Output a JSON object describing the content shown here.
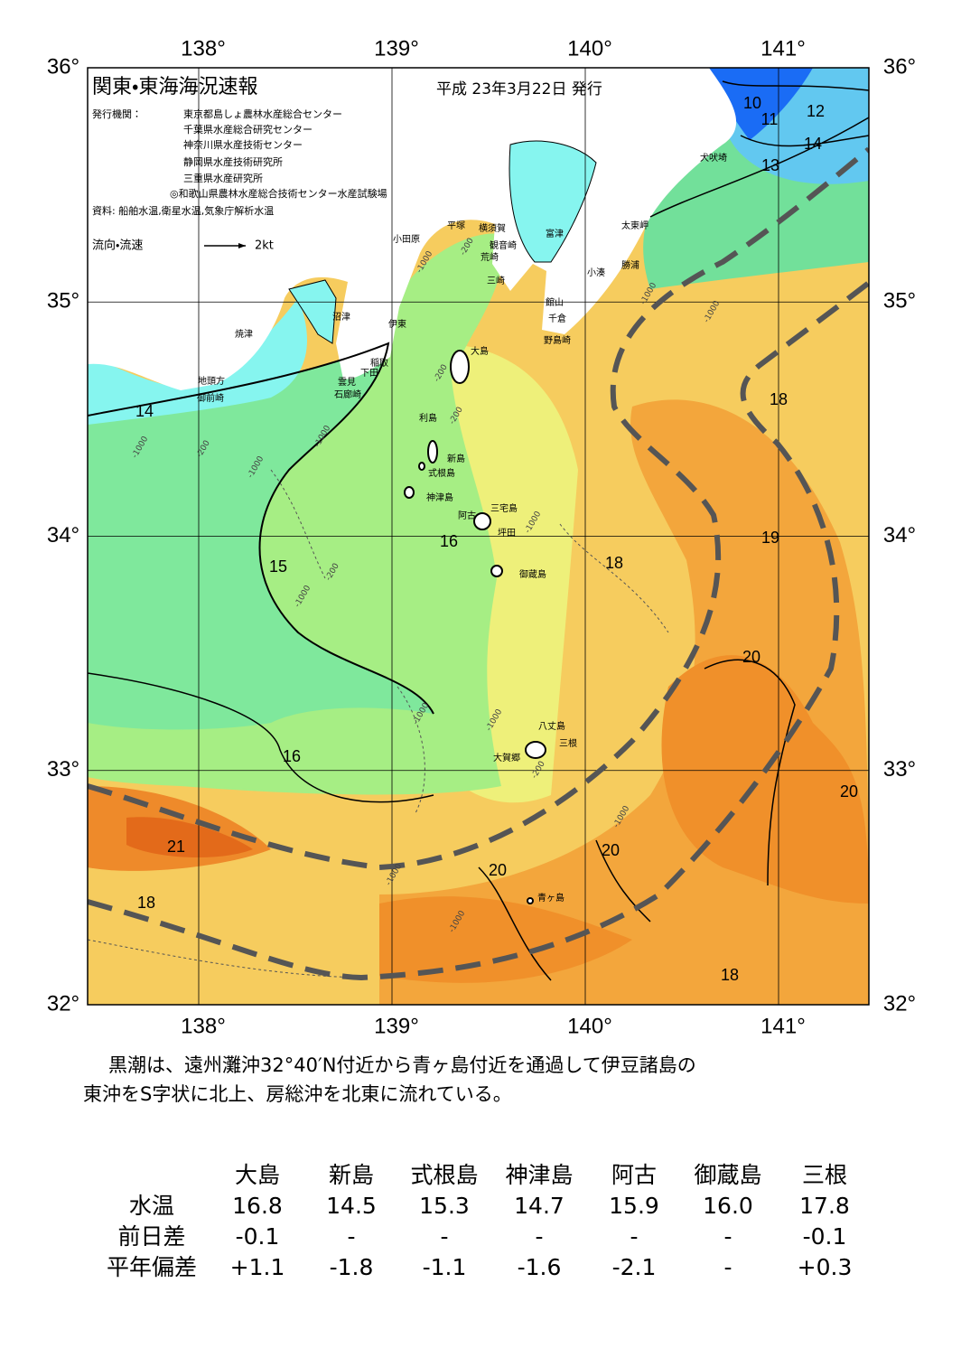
{
  "header": {
    "title": "関東・東海海況速報",
    "date": "平成 23年3月22日 発行",
    "publisher_label": "発行機関：",
    "publishers": [
      "東京都島しょ農林水産総合センター",
      "千葉県水産総合研究センター",
      "神奈川県水産技術センター",
      "静岡県水産技術研究所",
      "三重県水産研究所",
      "◎和歌山県農林水産総合技術センター水産試験場"
    ],
    "sources": "資料: 船舶水温,衛星水温,気象庁解析水温",
    "legend_label": "流向・流速",
    "legend_scale": "2kt"
  },
  "map": {
    "lon_ticks": [
      {
        "value": 138,
        "label": "138°"
      },
      {
        "value": 139,
        "label": "139°"
      },
      {
        "value": 140,
        "label": "140°"
      },
      {
        "value": 141,
        "label": "141°"
      }
    ],
    "lat_ticks": [
      {
        "value": 32,
        "label": "32°"
      },
      {
        "value": 33,
        "label": "33°"
      },
      {
        "value": 34,
        "label": "34°"
      },
      {
        "value": 35,
        "label": "35°"
      },
      {
        "value": 36,
        "label": "36°"
      }
    ],
    "places": [
      "小田原",
      "平塚",
      "横須賀",
      "観音崎",
      "富津",
      "荒崎",
      "三崎",
      "太東岬",
      "勝浦",
      "小湊",
      "館山",
      "千倉",
      "野島崎",
      "犬吠埼",
      "大島",
      "沼津",
      "伊東",
      "焼津",
      "稲取",
      "下田",
      "雲見",
      "石廊崎",
      "地頭方",
      "御前崎",
      "利島",
      "新島",
      "式根島",
      "神津島",
      "三宅島",
      "阿古",
      "坪田",
      "御蔵島",
      "八丈島",
      "三根",
      "大賀郷",
      "青ヶ島"
    ],
    "isotherm_labels": [
      "14",
      "15",
      "16",
      "16",
      "18",
      "19",
      "18",
      "20",
      "20",
      "20",
      "20",
      "21",
      "18",
      "18",
      "10",
      "11",
      "12",
      "14",
      "13"
    ],
    "depth_labels": [
      "-1000",
      "-200",
      "-200",
      "-200",
      "-1000",
      "-1000",
      "-200",
      "-1000",
      "-200",
      "-1000",
      "-1000",
      "-1000",
      "-1000",
      "-1000",
      "-1000",
      "-200",
      "-1000",
      "-1000",
      "-1000"
    ]
  },
  "summary": [
    "黒潮は、遠州灘沖32°40′N付近から青ヶ島付近を通過して伊豆諸島の",
    "東沖をS字状に北上、房総沖を北東に流れている。"
  ],
  "table": {
    "columns": [
      "大島",
      "新島",
      "式根島",
      "神津島",
      "阿古",
      "御蔵島",
      "三根"
    ],
    "rows": [
      {
        "label": "水温",
        "values": [
          "16.8",
          "14.5",
          "15.3",
          "14.7",
          "15.9",
          "16.0",
          "17.8"
        ]
      },
      {
        "label": "前日差",
        "values": [
          "-0.1",
          "-",
          "-",
          "-",
          "-",
          "-",
          "-0.1"
        ]
      },
      {
        "label": "平年偏差",
        "values": [
          "+1.1",
          "-1.8",
          "-1.1",
          "-1.6",
          "-2.1",
          "-",
          "+0.3"
        ]
      }
    ]
  }
}
